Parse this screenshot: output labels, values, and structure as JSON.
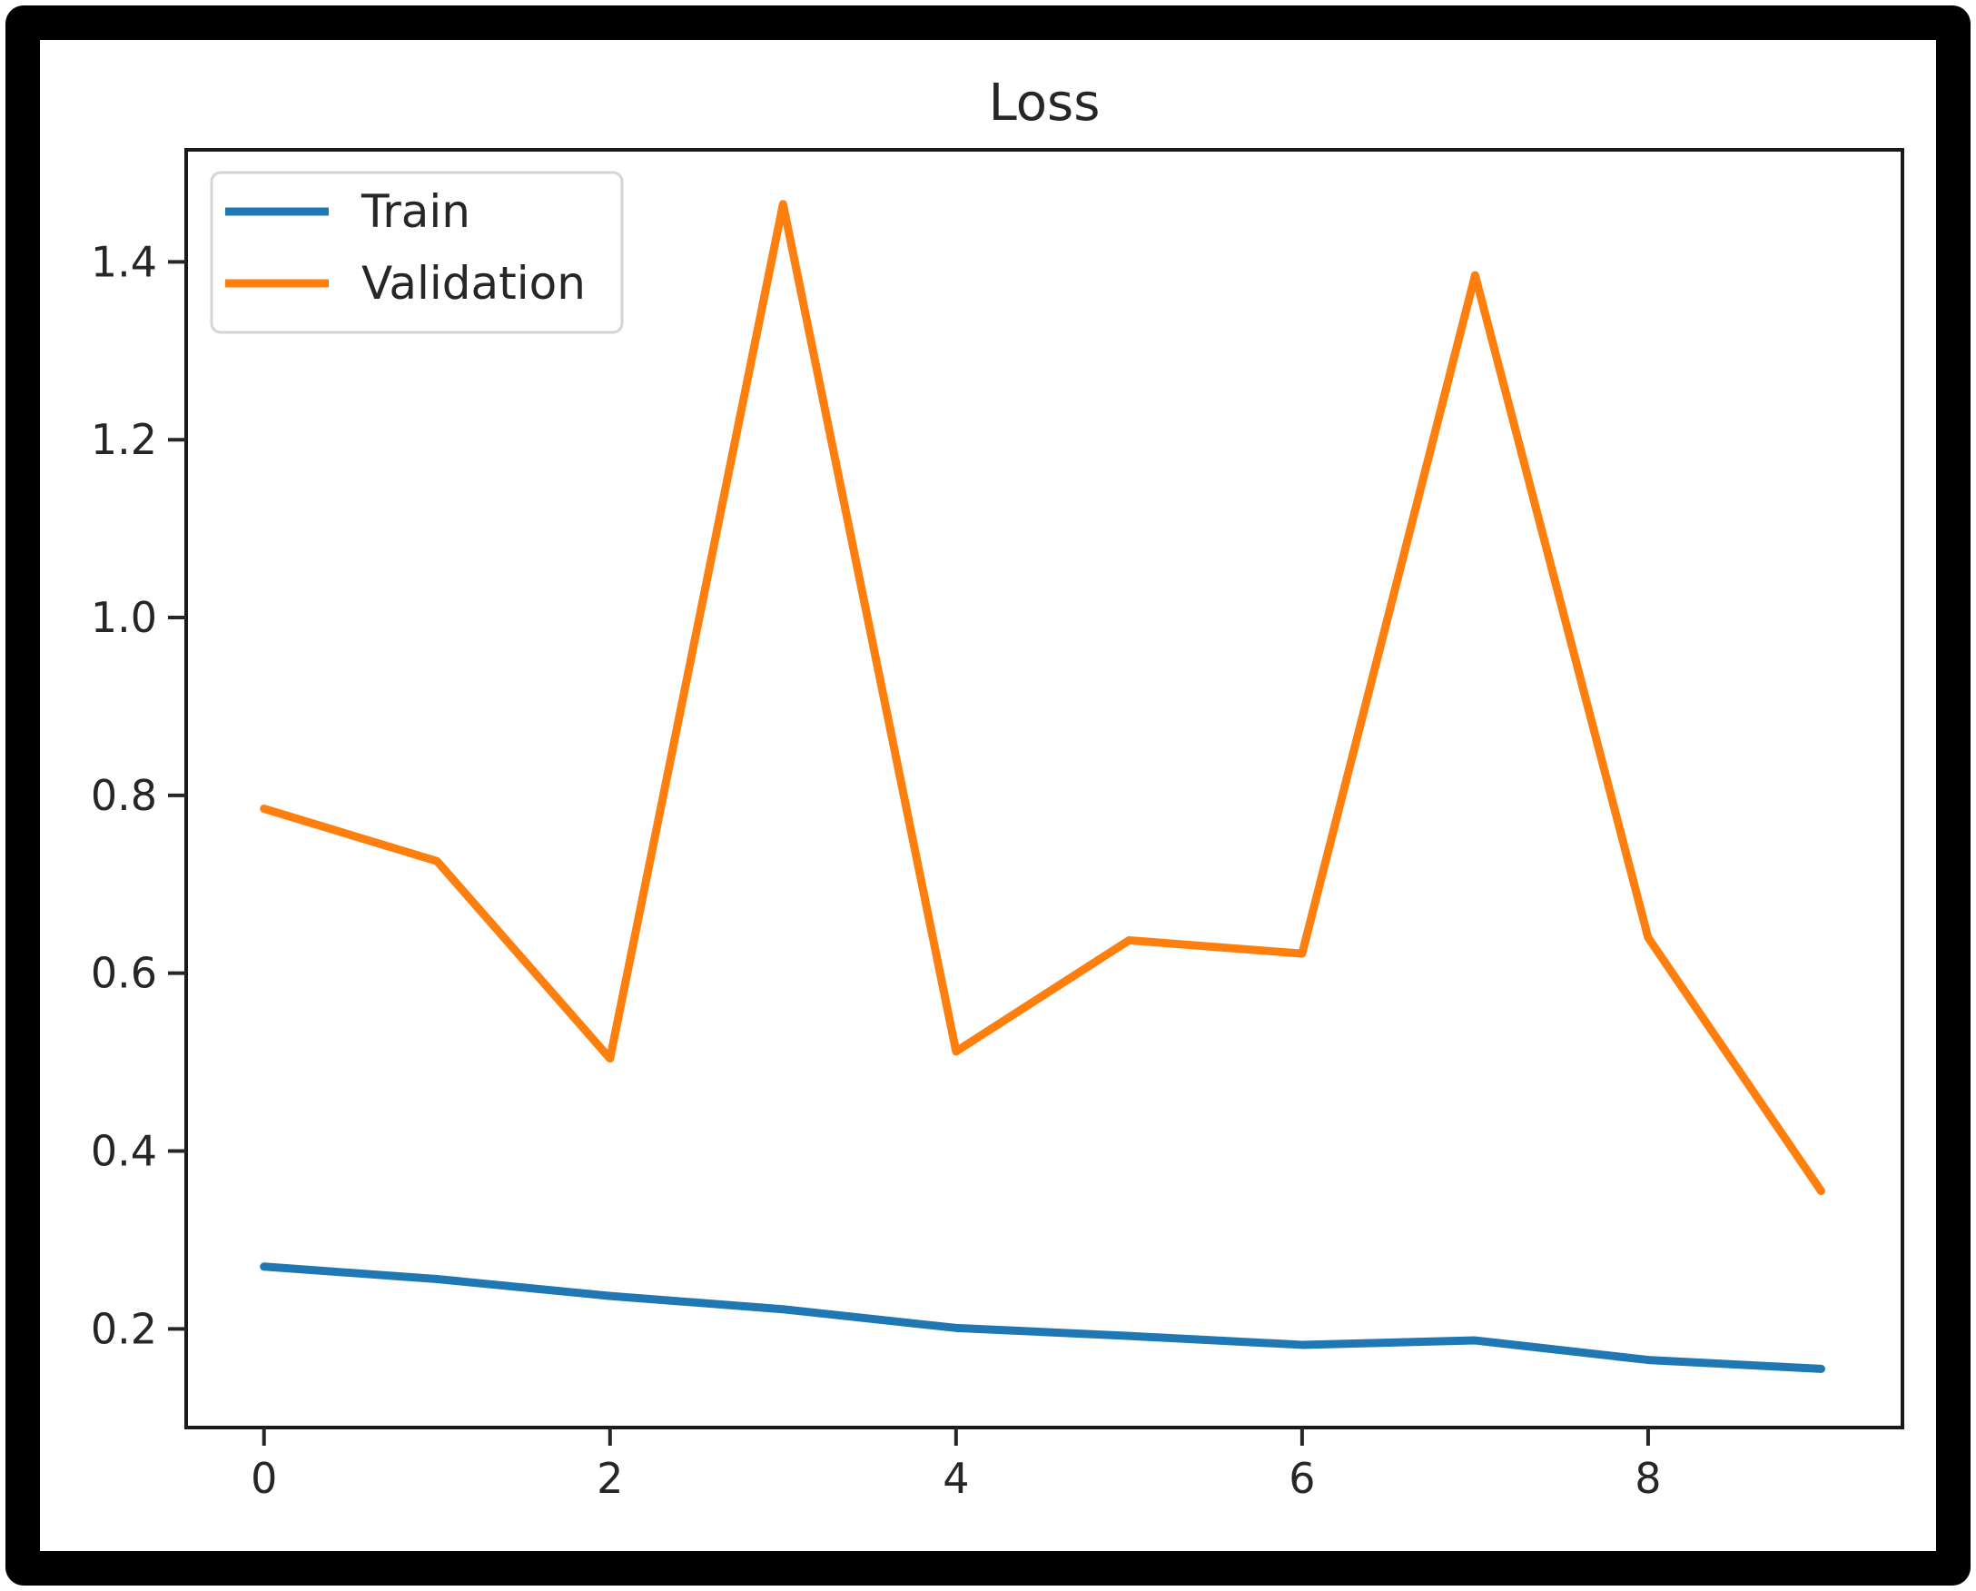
{
  "figure": {
    "title": "Loss"
  },
  "chart_data": {
    "type": "line",
    "title": "Loss",
    "xlabel": "",
    "ylabel": "",
    "x": [
      0,
      1,
      2,
      3,
      4,
      5,
      6,
      7,
      8,
      9
    ],
    "series": [
      {
        "name": "Train",
        "color": "#1f77b4",
        "values": [
          0.27,
          0.256,
          0.237,
          0.222,
          0.201,
          0.192,
          0.182,
          0.187,
          0.165,
          0.155
        ]
      },
      {
        "name": "Validation",
        "color": "#ff7f0e",
        "values": [
          0.785,
          0.726,
          0.504,
          1.465,
          0.512,
          0.637,
          0.622,
          1.385,
          0.64,
          0.355
        ]
      }
    ],
    "xlim": [
      -0.45,
      9.47
    ],
    "ylim": [
      0.089,
      1.526
    ],
    "xticks": [
      0,
      2,
      4,
      6,
      8
    ],
    "yticks": [
      0.2,
      0.4,
      0.6,
      0.8,
      1.0,
      1.2,
      1.4
    ],
    "grid": false,
    "legend_position": "upper left"
  },
  "colors": {
    "frame": "#000000",
    "spine": "#1a1a1a",
    "tick": "#262626",
    "text": "#262626",
    "legend_border": "#d5d5d5",
    "legend_fill": "#ffffff"
  }
}
